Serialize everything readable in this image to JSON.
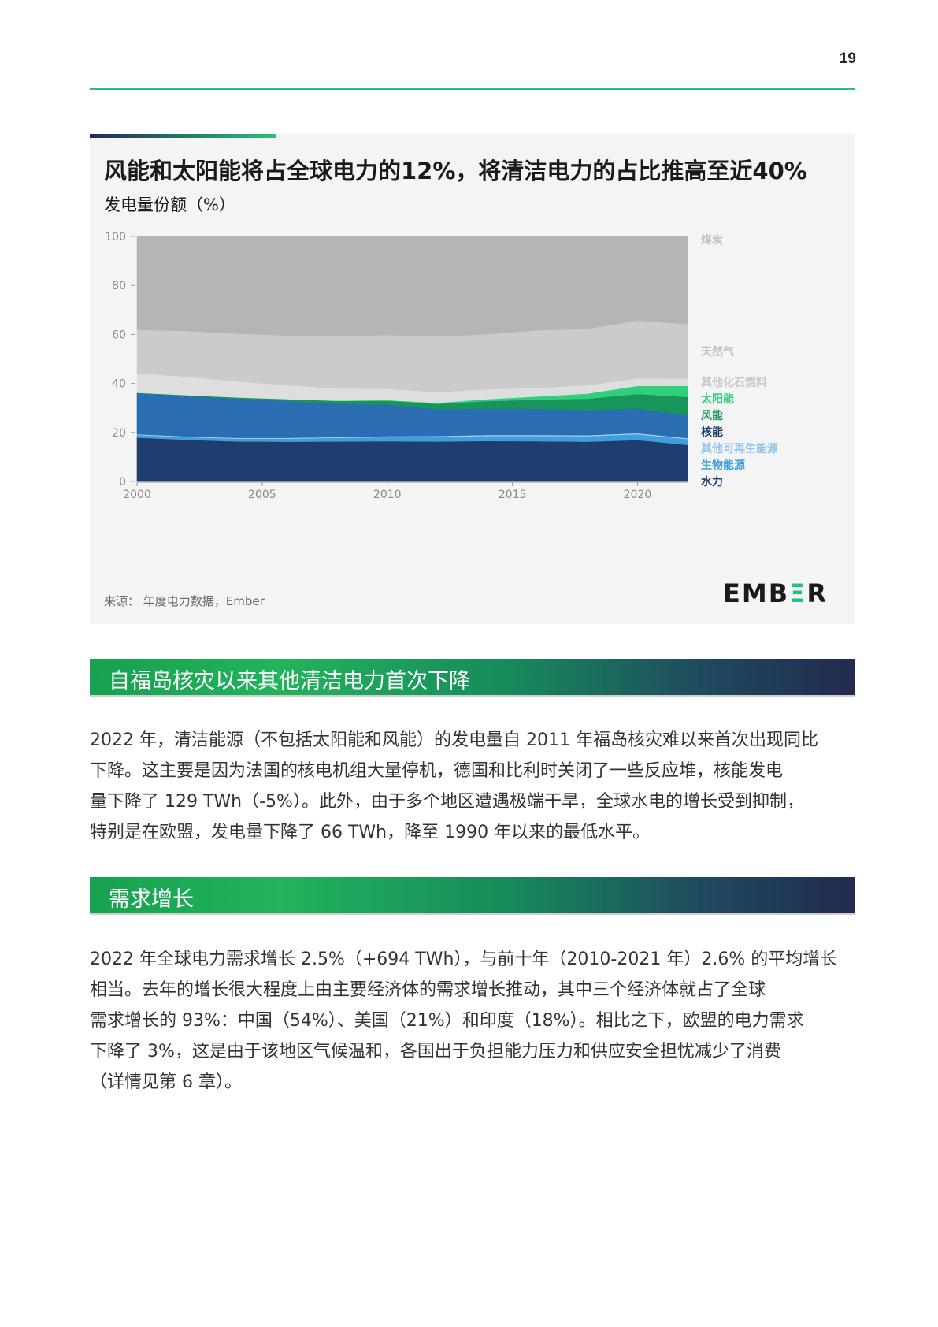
{
  "page_number": "19",
  "chart": {
    "title": "风能和太阳能将占全球电力的12%，将清洁电力的占比推高至近40%",
    "subtitle": "发电量份额（%）",
    "source": "来源：  年度电力数据，Ember",
    "logo": {
      "left": "EMB",
      "mid": "Ξ",
      "right": "R",
      "name": "EMBER"
    }
  },
  "chart_data": {
    "type": "area",
    "title": "风能和太阳能将占全球电力的12%，将清洁电力的占比推高至近40%",
    "ylabel": "发电量份额（%）",
    "xlabel": "",
    "ylim": [
      0,
      100
    ],
    "xlim": [
      2000,
      2022
    ],
    "yticks": [
      "100",
      "80",
      "60",
      "40",
      "20",
      "0"
    ],
    "xticks": [
      "2000",
      "2005",
      "2010",
      "2015",
      "2020"
    ],
    "grid": true,
    "legend": "right",
    "x": [
      2000,
      2002,
      2004,
      2006,
      2008,
      2010,
      2012,
      2014,
      2016,
      2018,
      2020,
      2022
    ],
    "series": [
      {
        "name": "水力",
        "color": "#1f3d6e",
        "label_color": "#1f3d6e",
        "values": [
          17.9,
          17.0,
          16.3,
          16.2,
          16.3,
          16.4,
          16.3,
          16.5,
          16.4,
          16.2,
          16.9,
          14.9
        ]
      },
      {
        "name": "生物能源",
        "color": "#3f9fdc",
        "label_color": "#3f9fdc",
        "values": [
          1.1,
          1.1,
          1.2,
          1.3,
          1.5,
          1.7,
          1.9,
          2.1,
          2.2,
          2.3,
          2.4,
          2.4
        ]
      },
      {
        "name": "其他可再生能源",
        "color": "#a9cfee",
        "label_color": "#8fc3ea",
        "values": [
          0.3,
          0.3,
          0.3,
          0.3,
          0.3,
          0.4,
          0.4,
          0.4,
          0.4,
          0.4,
          0.4,
          0.4
        ]
      },
      {
        "name": "核能",
        "color": "#2a6db3",
        "label_color": "#1f3d6e",
        "values": [
          16.7,
          16.5,
          16.0,
          15.0,
          13.6,
          12.9,
          10.8,
          10.7,
          10.6,
          10.2,
          10.1,
          9.2
        ]
      },
      {
        "name": "风能",
        "color": "#17955b",
        "label_color": "#17955b",
        "values": [
          0.2,
          0.3,
          0.5,
          0.8,
          1.2,
          1.6,
          2.3,
          3.1,
          3.8,
          4.7,
          5.9,
          7.6
        ]
      },
      {
        "name": "太阳能",
        "color": "#2fcf7c",
        "label_color": "#2fcf7c",
        "values": [
          0.0,
          0.0,
          0.0,
          0.0,
          0.1,
          0.2,
          0.4,
          0.8,
          1.3,
          2.1,
          3.3,
          4.5
        ]
      },
      {
        "name": "其他化石燃料",
        "color": "#dedede",
        "label_color": "#c9c9c9",
        "values": [
          7.9,
          7.6,
          6.5,
          5.7,
          5.0,
          4.6,
          4.4,
          4.0,
          3.6,
          3.3,
          3.1,
          3.0
        ]
      },
      {
        "name": "天然气",
        "color": "#cbcbcb",
        "label_color": "#c2c2c2",
        "values": [
          17.8,
          18.6,
          19.5,
          20.3,
          21.3,
          22.0,
          22.7,
          22.5,
          23.4,
          23.1,
          23.6,
          22.2
        ]
      },
      {
        "name": "煤炭",
        "color": "#b5b5b5",
        "label_color": "#c2c2c2",
        "values": [
          38.1,
          38.6,
          39.7,
          40.4,
          40.7,
          40.2,
          40.8,
          39.9,
          38.3,
          37.7,
          34.3,
          35.8
        ]
      }
    ],
    "legend_order": [
      "煤炭",
      "天然气",
      "其他化石燃料",
      "太阳能",
      "风能",
      "核能",
      "其他可再生能源",
      "生物能源",
      "水力"
    ]
  },
  "sections": [
    {
      "heading": "自福岛核灾以来其他清洁电力首次下降",
      "lines": [
        "2022 年，清洁能源（不包括太阳能和风能）的发电量自 2011 年福岛核灾难以来首次出现同比",
        "下降。这主要是因为法国的核电机组大量停机，德国和比利时关闭了一些反应堆，核能发电",
        "量下降了 129 TWh（-5%）。此外，由于多个地区遭遇极端干旱，全球水电的增长受到抑制，",
        "特别是在欧盟，发电量下降了 66 TWh，降至 1990 年以来的最低水平。"
      ]
    },
    {
      "heading": "需求增长",
      "lines": [
        "2022 年全球电力需求增长 2.5%（+694 TWh），与前十年（2010-2021 年）2.6% 的平均增长",
        "相当。去年的增长很大程度上由主要经济体的需求增长推动，其中三个经济体就占了全球",
        "需求增长的 93%：中国（54%）、美国（21%）和印度（18%）。相比之下，欧盟的电力需求",
        "下降了 3%，这是由于该地区气候温和，各国出于负担能力压力和供应安全担忧减少了消费",
        "（详情见第 6 章）。"
      ]
    }
  ]
}
